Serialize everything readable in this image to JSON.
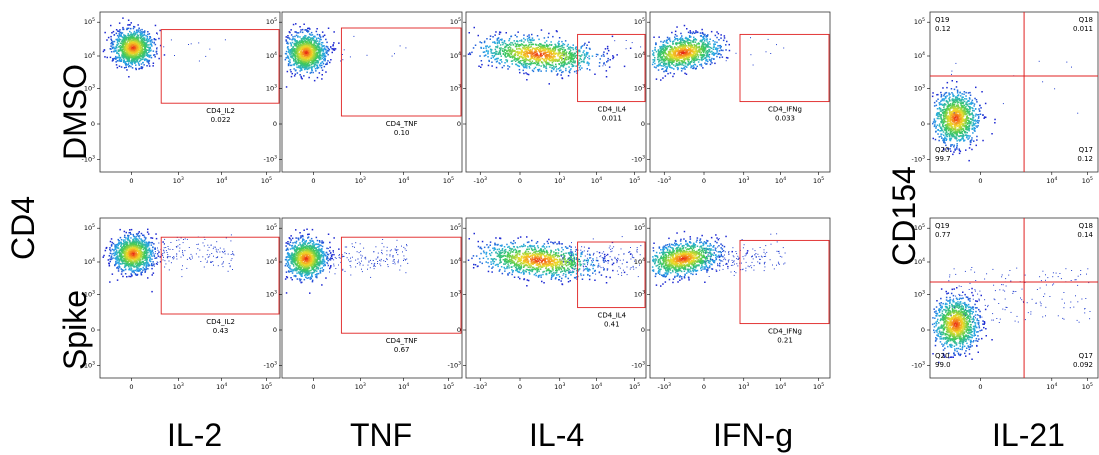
{
  "row_labels": [
    "DMSO",
    "Spike"
  ],
  "y_label_left": "CD4",
  "y_label_right": "CD154",
  "x_labels": [
    "IL-2",
    "TNF",
    "IL-4",
    "IFN-g",
    "IL-21"
  ],
  "colors": {
    "gate": "#e02020",
    "quad": "#e02020",
    "density_low": "#1a2fd0",
    "density_high": "#e01010"
  },
  "chart_data": [
    {
      "type": "scatter",
      "panel": "DMSO IL-2",
      "x_ticks": [
        "0",
        "10^3",
        "10^4",
        "10^5"
      ],
      "y_ticks": [
        "-10^3",
        "0",
        "10^3",
        "10^4",
        "10^5"
      ],
      "gate": {
        "name": "CD4_IL2",
        "value": "0.022"
      },
      "density_center": [
        250,
        20000
      ]
    },
    {
      "type": "scatter",
      "panel": "DMSO TNF",
      "x_ticks": [
        "0",
        "10^3",
        "10^4",
        "10^5"
      ],
      "y_ticks": [
        "-10^3",
        "0",
        "10^3",
        "10^4",
        "10^5"
      ],
      "gate": {
        "name": "CD4_TNF",
        "value": "0.10"
      },
      "density_center": [
        0,
        20000
      ]
    },
    {
      "type": "scatter",
      "panel": "DMSO IL-4",
      "x_ticks": [
        "-10^3",
        "0",
        "10^3",
        "10^4",
        "10^5"
      ],
      "y_ticks": [
        "0",
        "10^3",
        "10^4",
        "10^5"
      ],
      "gate": {
        "name": "CD4_IL4",
        "value": "0.011"
      },
      "density_center": [
        1000,
        20000
      ]
    },
    {
      "type": "scatter",
      "panel": "DMSO IFN-g",
      "x_ticks": [
        "-10^3",
        "0",
        "10^3",
        "10^4",
        "10^5"
      ],
      "y_ticks": [
        "-10^3",
        "0",
        "10^3",
        "10^4",
        "10^5"
      ],
      "gate": {
        "name": "CD4_IFNg",
        "value": "0.033"
      },
      "density_center": [
        0,
        20000
      ]
    },
    {
      "type": "scatter",
      "panel": "DMSO IL-21",
      "x_ticks": [
        "0",
        "10^4",
        "10^5"
      ],
      "y_ticks": [
        "-10^3",
        "0",
        "10^3",
        "10^4",
        "10^5"
      ],
      "quadrants": [
        {
          "name": "Q19",
          "value": "0.12"
        },
        {
          "name": "Q18",
          "value": "0.011"
        },
        {
          "name": "Q20",
          "value": "99.7"
        },
        {
          "name": "Q17",
          "value": "0.12"
        }
      ],
      "density_center": [
        0,
        1000
      ]
    },
    {
      "type": "scatter",
      "panel": "Spike IL-2",
      "x_ticks": [
        "0",
        "10^3",
        "10^4",
        "10^5"
      ],
      "y_ticks": [
        "-10^3",
        "0",
        "10^3",
        "10^4",
        "10^5"
      ],
      "gate": {
        "name": "CD4_IL2",
        "value": "0.43"
      },
      "density_center": [
        250,
        20000
      ]
    },
    {
      "type": "scatter",
      "panel": "Spike TNF",
      "x_ticks": [
        "0",
        "10^3",
        "10^4",
        "10^5"
      ],
      "y_ticks": [
        "-10^3",
        "0",
        "10^3",
        "10^4",
        "10^5"
      ],
      "gate": {
        "name": "CD4_TNF",
        "value": "0.67"
      },
      "density_center": [
        0,
        20000
      ]
    },
    {
      "type": "scatter",
      "panel": "Spike IL-4",
      "x_ticks": [
        "-10^3",
        "0",
        "10^3",
        "10^4",
        "10^5"
      ],
      "y_ticks": [
        "-10^3",
        "0",
        "10^3",
        "10^4",
        "10^5"
      ],
      "gate": {
        "name": "CD4_IL4",
        "value": "0.41"
      },
      "density_center": [
        1000,
        20000
      ]
    },
    {
      "type": "scatter",
      "panel": "Spike IFN-g",
      "x_ticks": [
        "-10^3",
        "0",
        "10^3",
        "10^4",
        "10^5"
      ],
      "y_ticks": [
        "-10^3",
        "0",
        "10^3",
        "10^4",
        "10^5"
      ],
      "gate": {
        "name": "CD4_IFNg",
        "value": "0.21"
      },
      "density_center": [
        0,
        20000
      ]
    },
    {
      "type": "scatter",
      "panel": "Spike IL-21",
      "x_ticks": [
        "0",
        "10^4",
        "10^5"
      ],
      "y_ticks": [
        "-10^3",
        "0",
        "10^3",
        "10^4",
        "10^5"
      ],
      "quadrants": [
        {
          "name": "Q19",
          "value": "0.77"
        },
        {
          "name": "Q18",
          "value": "0.14"
        },
        {
          "name": "Q20",
          "value": "99.0"
        },
        {
          "name": "Q17",
          "value": "0.092"
        }
      ],
      "density_center": [
        0,
        1000
      ]
    }
  ]
}
